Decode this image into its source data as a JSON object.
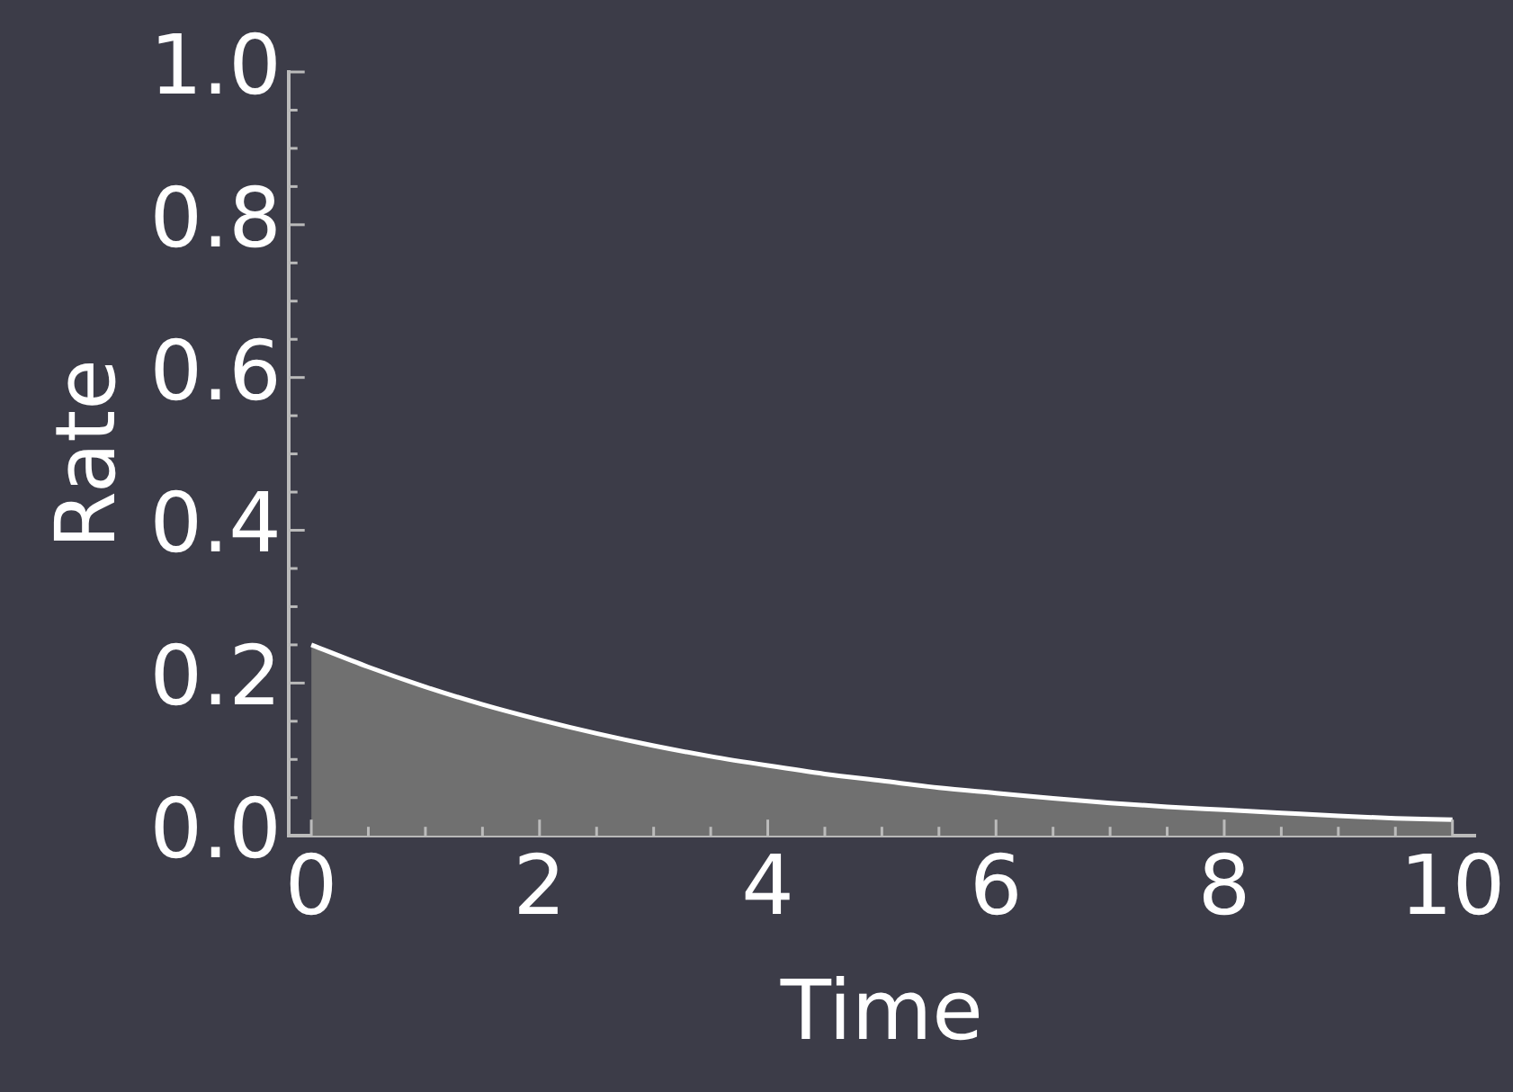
{
  "chart_data": {
    "type": "area",
    "xlabel": "Time",
    "ylabel": "Rate",
    "x": [
      0,
      0.5,
      1,
      1.5,
      2,
      2.5,
      3,
      3.5,
      4,
      4.5,
      5,
      5.5,
      6,
      6.5,
      7,
      7.5,
      8,
      8.5,
      9,
      9.5,
      10
    ],
    "series": [
      {
        "color": "#707070",
        "values": [
          0.25,
          0.221,
          0.195,
          0.172,
          0.152,
          0.134,
          0.118,
          0.104,
          0.092,
          0.081,
          0.072,
          0.063,
          0.056,
          0.049,
          0.043,
          0.038,
          0.034,
          0.03,
          0.026,
          0.023,
          0.021
        ]
      }
    ],
    "xlim": [
      -0.2,
      10.2
    ],
    "ylim": [
      0,
      1
    ],
    "xticks": [
      0,
      {
        "value": 0.5,
        "label": null
      },
      {
        "value": 1,
        "label": null
      },
      {
        "value": 1.5,
        "label": null
      },
      2,
      {
        "value": 2.5,
        "label": null
      },
      {
        "value": 3,
        "label": null
      },
      {
        "value": 3.5,
        "label": null
      },
      4,
      {
        "value": 4.5,
        "label": null
      },
      {
        "value": 5,
        "label": null
      },
      {
        "value": 5.5,
        "label": null
      },
      6,
      {
        "value": 6.5,
        "label": null
      },
      {
        "value": 7,
        "label": null
      },
      {
        "value": 7.5,
        "label": null
      },
      8,
      {
        "value": 8.5,
        "label": null
      },
      {
        "value": 9,
        "label": null
      },
      {
        "value": 9.5,
        "label": null
      },
      10
    ],
    "yticks": [
      {
        "value": 0,
        "label": "0.0"
      },
      {
        "value": 0.05,
        "label": null
      },
      {
        "value": 0.1,
        "label": null
      },
      {
        "value": 0.15,
        "label": null
      },
      {
        "value": 0.2,
        "label": "0.2"
      },
      {
        "value": 0.25,
        "label": null
      },
      {
        "value": 0.3,
        "label": null
      },
      {
        "value": 0.35,
        "label": null
      },
      {
        "value": 0.4,
        "label": "0.4"
      },
      {
        "value": 0.45,
        "label": null
      },
      {
        "value": 0.5,
        "label": null
      },
      {
        "value": 0.55,
        "label": null
      },
      {
        "value": 0.6,
        "label": "0.6"
      },
      {
        "value": 0.65,
        "label": null
      },
      {
        "value": 0.7,
        "label": null
      },
      {
        "value": 0.75,
        "label": null
      },
      {
        "value": 0.8,
        "label": "0.8"
      },
      {
        "value": 0.85,
        "label": null
      },
      {
        "value": 0.9,
        "label": null
      },
      {
        "value": 0.95,
        "label": null
      },
      {
        "value": 1,
        "label": "1.0"
      }
    ]
  }
}
